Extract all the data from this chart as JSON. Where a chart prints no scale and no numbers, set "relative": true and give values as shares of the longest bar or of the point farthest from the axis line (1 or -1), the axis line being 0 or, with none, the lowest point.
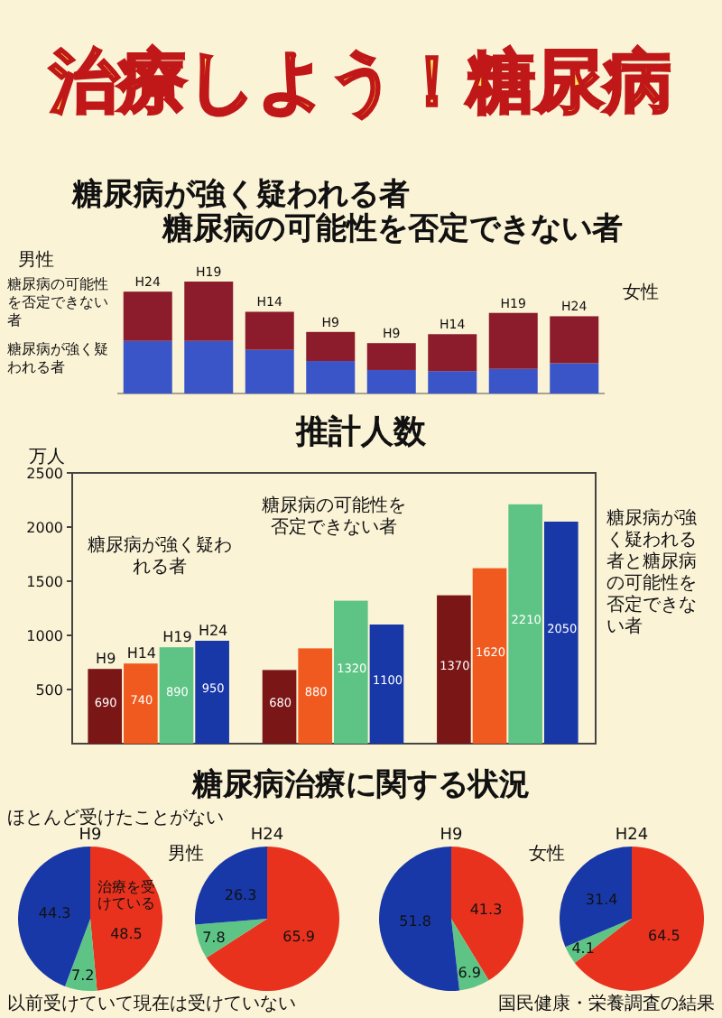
{
  "chart_data": [
    {
      "type": "other",
      "title": "治療しよう！糖尿病"
    },
    {
      "type": "bar",
      "title": "糖尿病が強く疑われる者",
      "subtitle": "糖尿病の可能性を否定できない者",
      "relative": true,
      "stacked": true,
      "categories": [
        "H24",
        "H19",
        "H14",
        "H9",
        "H9",
        "H14",
        "H19",
        "H24"
      ],
      "series": [
        {
          "name": "糖尿病が強く疑われる者",
          "color": "#3a55c8",
          "values": [
            0.47,
            0.47,
            0.39,
            0.29,
            0.21,
            0.2,
            0.22,
            0.27
          ]
        },
        {
          "name": "糖尿病の可能性を否定できない者",
          "color": "#8c1c2c",
          "values": [
            0.44,
            0.53,
            0.34,
            0.26,
            0.24,
            0.33,
            0.5,
            0.42
          ]
        }
      ],
      "annotations": [
        "男性",
        "女性"
      ]
    },
    {
      "type": "bar",
      "title": "推計人数",
      "ylabel": "万人",
      "ylim": [
        0,
        2500
      ],
      "yticks": [
        500,
        1000,
        1500,
        2000,
        2500
      ],
      "data_labels": true,
      "categories": [
        null,
        null,
        null
      ],
      "annotations": [
        "糖尿病が強く疑われる者",
        "糖尿病の可能性を否定できない者",
        "糖尿病が強く疑われる者と糖尿病の可能性を否定できない者"
      ],
      "series": [
        {
          "name": "H9",
          "color": "#7a1616",
          "values": [
            690,
            680,
            1370
          ]
        },
        {
          "name": "H14",
          "color": "#f05a1e",
          "values": [
            740,
            880,
            1620
          ]
        },
        {
          "name": "H19",
          "color": "#5ec486",
          "values": [
            890,
            1320,
            2210
          ]
        },
        {
          "name": "H24",
          "color": "#1838a8",
          "values": [
            950,
            1100,
            2050
          ]
        }
      ]
    },
    {
      "type": "other",
      "title": "糖尿病治療に関する状況"
    },
    {
      "type": "pie",
      "title": "H9",
      "subtitle": "男性",
      "categories": [
        "治療を受けている",
        "以前受けていて現在は受けていない",
        "ほとんど受けたことがない"
      ],
      "values": [
        48.5,
        7.2,
        44.3
      ],
      "colors": [
        "#e8321e",
        "#5ec486",
        "#1838a8"
      ],
      "data_labels": true
    },
    {
      "type": "pie",
      "title": "H24",
      "categories": [
        null,
        null,
        null
      ],
      "values": [
        65.9,
        7.8,
        26.3
      ],
      "colors": [
        "#e8321e",
        "#5ec486",
        "#1838a8"
      ],
      "data_labels": true
    },
    {
      "type": "pie",
      "title": "H9",
      "subtitle": "女性",
      "categories": [
        null,
        null,
        null
      ],
      "values": [
        41.3,
        6.9,
        51.8
      ],
      "colors": [
        "#e8321e",
        "#5ec486",
        "#1838a8"
      ],
      "data_labels": true
    },
    {
      "type": "pie",
      "title": "H24",
      "categories": [
        null,
        null,
        null
      ],
      "values": [
        64.5,
        4.1,
        31.4
      ],
      "colors": [
        "#e8321e",
        "#5ec486",
        "#1838a8"
      ],
      "data_labels": true,
      "annotations": [
        "国民健康・栄養調査の結果"
      ]
    }
  ]
}
